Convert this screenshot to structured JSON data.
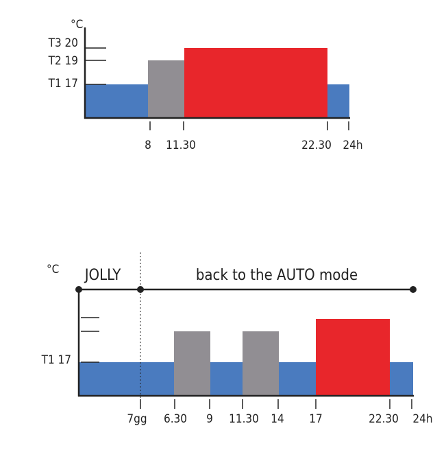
{
  "top": {
    "unit": "°C",
    "levels": [
      "T3 20",
      "T2 19",
      "T1 17"
    ],
    "times": [
      "8",
      "11.30",
      "22.30",
      "24h"
    ]
  },
  "bottom": {
    "unit": "°C",
    "jolly": "JOLLY",
    "caption": "back to the AUTO mode",
    "levels": [
      "T1 17"
    ],
    "times": [
      "7gg",
      "6.30",
      "9",
      "11.30",
      "14",
      "17",
      "22.30",
      "24h"
    ]
  }
}
